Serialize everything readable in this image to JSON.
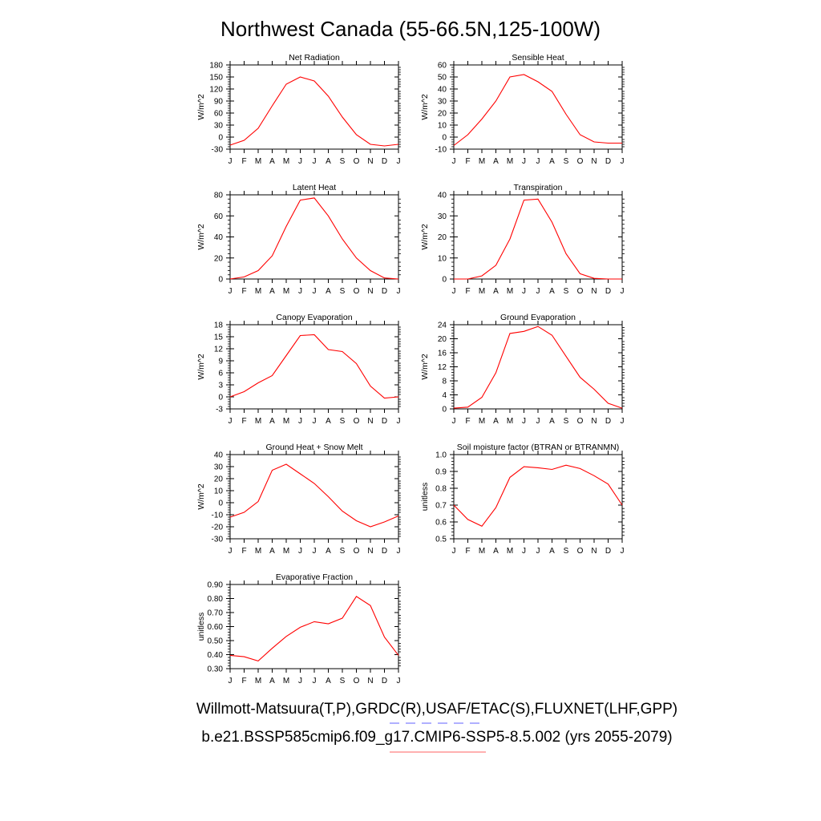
{
  "title": "Northwest Canada (55-66.5N,125-100W)",
  "legend": {
    "obs_label": "Willmott-Matsuura(T,P),GRDC(R),USAF/ETAC(S),FLUXNET(LHF,GPP)",
    "obs_color": "#8080ff",
    "obs_style": "dashed",
    "model_label": "b.e21.BSSP585cmip6.f09_g17.CMIP6-SSP5-8.5.002 (yrs 2055-2079)",
    "model_color": "#ff8080",
    "model_style": "solid"
  },
  "chart_data": [
    {
      "type": "line",
      "title": "Net Radiation",
      "ylabel": "W/m^2",
      "categories": [
        "J",
        "F",
        "M",
        "A",
        "M",
        "J",
        "J",
        "A",
        "S",
        "O",
        "N",
        "D",
        "J"
      ],
      "series": [
        {
          "values": [
            -20,
            -8,
            22,
            78,
            132,
            150,
            140,
            102,
            50,
            6,
            -18,
            -22,
            -18
          ]
        }
      ],
      "ylim": [
        -30,
        180
      ],
      "yticks": [
        "-30",
        "0",
        "30",
        "60",
        "90",
        "120",
        "150",
        "180"
      ],
      "color": "#ff0000"
    },
    {
      "type": "line",
      "title": "Sensible Heat",
      "ylabel": "W/m^2",
      "categories": [
        "J",
        "F",
        "M",
        "A",
        "M",
        "J",
        "J",
        "A",
        "S",
        "O",
        "N",
        "D",
        "J"
      ],
      "series": [
        {
          "values": [
            -7,
            2,
            15,
            30,
            50,
            52,
            46,
            38,
            19,
            2,
            -4,
            -5,
            -5
          ]
        }
      ],
      "ylim": [
        -10,
        60
      ],
      "yticks": [
        "-10",
        "0",
        "10",
        "20",
        "30",
        "40",
        "50",
        "60"
      ],
      "color": "#ff0000"
    },
    {
      "type": "line",
      "title": "Latent Heat",
      "ylabel": "W/m^2",
      "categories": [
        "J",
        "F",
        "M",
        "A",
        "M",
        "J",
        "J",
        "A",
        "S",
        "O",
        "N",
        "D",
        "J"
      ],
      "series": [
        {
          "values": [
            0,
            2,
            8,
            22,
            50,
            75,
            77,
            60,
            38,
            20,
            8,
            1,
            0
          ]
        }
      ],
      "ylim": [
        0,
        80
      ],
      "yticks": [
        "0",
        "20",
        "40",
        "60",
        "80"
      ],
      "color": "#ff0000"
    },
    {
      "type": "line",
      "title": "Transpiration",
      "ylabel": "W/m^2",
      "categories": [
        "J",
        "F",
        "M",
        "A",
        "M",
        "J",
        "J",
        "A",
        "S",
        "O",
        "N",
        "D",
        "J"
      ],
      "series": [
        {
          "values": [
            0,
            0,
            1.5,
            6.5,
            19,
            37.5,
            38,
            27,
            12,
            2.5,
            0.3,
            0,
            0
          ]
        }
      ],
      "ylim": [
        0,
        40
      ],
      "yticks": [
        "0",
        "10",
        "20",
        "30",
        "40"
      ],
      "color": "#ff0000"
    },
    {
      "type": "line",
      "title": "Canopy Evaporation",
      "ylabel": "W/m^2",
      "categories": [
        "J",
        "F",
        "M",
        "A",
        "M",
        "J",
        "J",
        "A",
        "S",
        "O",
        "N",
        "D",
        "J"
      ],
      "series": [
        {
          "values": [
            0,
            1.3,
            3.5,
            5.3,
            10.3,
            15.3,
            15.5,
            11.8,
            11.3,
            8.3,
            2.7,
            -0.3,
            0
          ]
        }
      ],
      "ylim": [
        -3,
        18
      ],
      "yticks": [
        "-3",
        "0",
        "3",
        "6",
        "9",
        "12",
        "15",
        "18"
      ],
      "color": "#ff0000"
    },
    {
      "type": "line",
      "title": "Ground Evaporation",
      "ylabel": "W/m^2",
      "categories": [
        "J",
        "F",
        "M",
        "A",
        "M",
        "J",
        "J",
        "A",
        "S",
        "O",
        "N",
        "D",
        "J"
      ],
      "series": [
        {
          "values": [
            0.2,
            0.5,
            3.3,
            10.3,
            21.5,
            22.1,
            23.5,
            21.0,
            15.0,
            9.0,
            5.6,
            1.6,
            0.2
          ]
        }
      ],
      "ylim": [
        0,
        24
      ],
      "yticks": [
        "0",
        "4",
        "8",
        "12",
        "16",
        "20",
        "24"
      ],
      "color": "#ff0000"
    },
    {
      "type": "line",
      "title": "Ground Heat + Snow Melt",
      "ylabel": "W/m^2",
      "categories": [
        "J",
        "F",
        "M",
        "A",
        "M",
        "J",
        "J",
        "A",
        "S",
        "O",
        "N",
        "D",
        "J"
      ],
      "series": [
        {
          "values": [
            -12,
            -8,
            1,
            27,
            32,
            24,
            16,
            5,
            -7,
            -15,
            -20,
            -16,
            -11
          ]
        }
      ],
      "ylim": [
        -30,
        40
      ],
      "yticks": [
        "-30",
        "-20",
        "-10",
        "0",
        "10",
        "20",
        "30",
        "40"
      ],
      "color": "#ff0000"
    },
    {
      "type": "line",
      "title": "Soil moisture factor (BTRAN or BTRANMN)",
      "ylabel": "unitless",
      "categories": [
        "J",
        "F",
        "M",
        "A",
        "M",
        "J",
        "J",
        "A",
        "S",
        "O",
        "N",
        "D",
        "J"
      ],
      "series": [
        {
          "values": [
            0.7,
            0.615,
            0.575,
            0.685,
            0.865,
            0.928,
            0.922,
            0.912,
            0.937,
            0.917,
            0.875,
            0.825,
            0.7
          ]
        }
      ],
      "ylim": [
        0.5,
        1.0
      ],
      "yticks": [
        "0.5",
        "0.6",
        "0.7",
        "0.8",
        "0.9",
        "1.0"
      ],
      "color": "#ff0000"
    },
    {
      "type": "line",
      "title": "Evaporative Fraction",
      "ylabel": "unitless",
      "categories": [
        "J",
        "F",
        "M",
        "A",
        "M",
        "J",
        "J",
        "A",
        "S",
        "O",
        "N",
        "D",
        "J"
      ],
      "series": [
        {
          "values": [
            0.395,
            0.385,
            0.355,
            0.445,
            0.53,
            0.595,
            0.635,
            0.62,
            0.66,
            0.815,
            0.75,
            0.525,
            0.395
          ]
        }
      ],
      "ylim": [
        0.3,
        0.9
      ],
      "yticks": [
        "0.30",
        "0.40",
        "0.50",
        "0.60",
        "0.70",
        "0.80",
        "0.90"
      ],
      "color": "#ff0000"
    }
  ]
}
